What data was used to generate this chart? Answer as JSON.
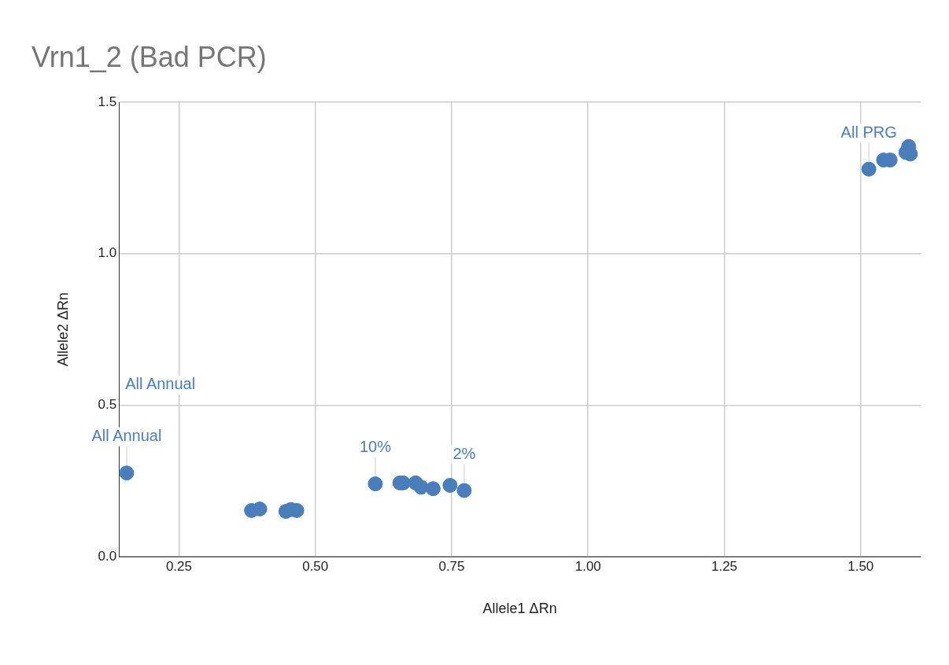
{
  "chart_data": {
    "type": "scatter",
    "title": "Vrn1_2 (Bad PCR)",
    "xlabel": "Allele1 ΔRn",
    "ylabel": "Allele2 ΔRn",
    "x": [
      0.154,
      0.383,
      0.398,
      0.446,
      0.455,
      0.466,
      0.61,
      0.655,
      0.661,
      0.684,
      0.694,
      0.716,
      0.747,
      0.773,
      1.515,
      1.542,
      1.554,
      1.583,
      1.588,
      1.591
    ],
    "values": [
      0.276,
      0.152,
      0.157,
      0.149,
      0.155,
      0.152,
      0.24,
      0.243,
      0.243,
      0.243,
      0.229,
      0.224,
      0.235,
      0.218,
      1.279,
      1.309,
      1.309,
      1.334,
      1.354,
      1.329
    ],
    "color": "#4a7ebb",
    "marker": "circle",
    "grid": true,
    "xlim": [
      0.14,
      1.61
    ],
    "ylim": [
      0,
      1.5
    ],
    "xticks": [
      0.25,
      {
        "value": 0.5,
        "label": "0.50"
      },
      0.75,
      {
        "value": 1,
        "label": "1.00"
      },
      1.25,
      {
        "value": 1.5,
        "label": "1.50"
      }
    ],
    "yticks": [
      {
        "value": 0,
        "label": "0.0"
      },
      0.5,
      {
        "value": 1,
        "label": "1.0"
      },
      1.5
    ],
    "annotations": [
      {
        "text": "All Annual",
        "x": 0.154,
        "y": 0.276
      },
      "All Annual",
      {
        "text": "10%",
        "x": 0.61,
        "y": 0.24
      },
      {
        "text": "2%",
        "x": 0.773,
        "y": 0.218
      },
      {
        "text": "All PRG",
        "x": 1.515,
        "y": 1.279
      }
    ]
  }
}
